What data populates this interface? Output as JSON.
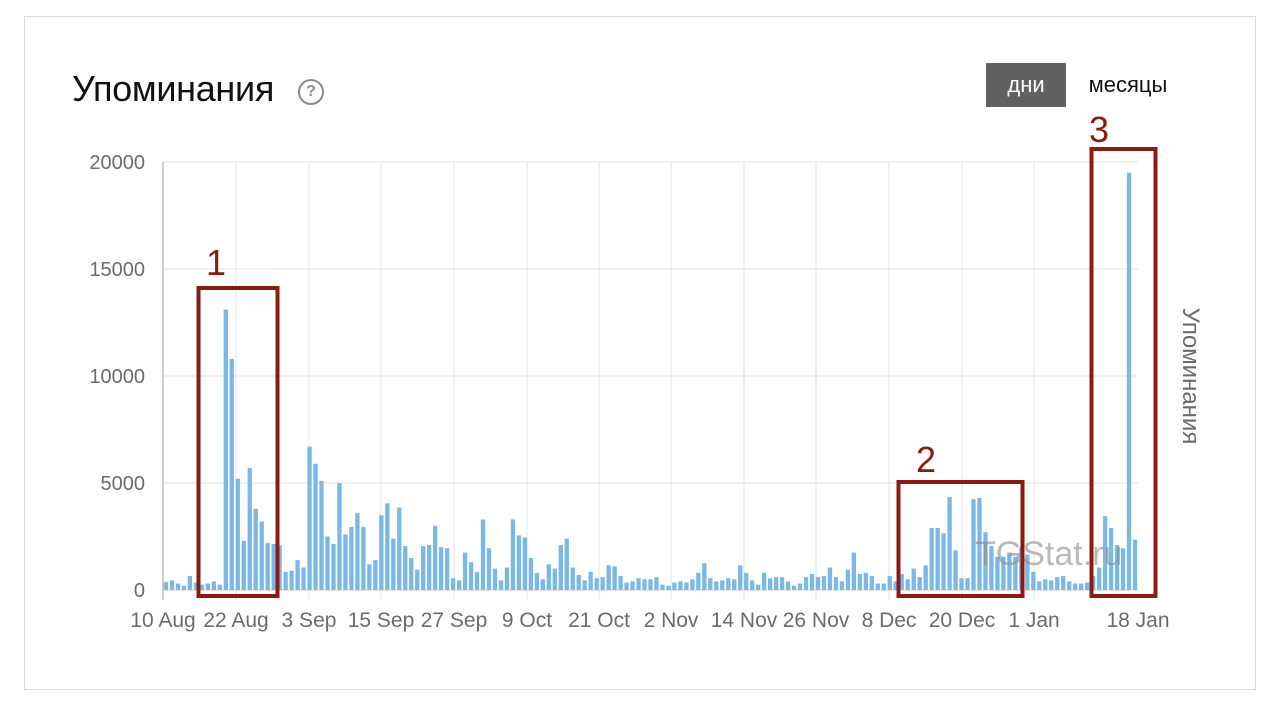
{
  "header": {
    "title": "Упоминания",
    "help_icon": "?",
    "toggle": {
      "days_label": "дни",
      "months_label": "месяцы",
      "selected": "дни"
    }
  },
  "watermark": "TGStat.ru",
  "annotations": [
    "1",
    "2",
    "3"
  ],
  "colors": {
    "bar": "#7ab8e6",
    "annotation": "#8b1a10",
    "active_toggle": "#616161"
  },
  "chart_data": {
    "type": "bar",
    "ylabel": "Упоминания",
    "ylim": [
      0,
      20000
    ],
    "yticks": [
      "0",
      "5000",
      "10000",
      "15000",
      "20000"
    ],
    "xticks": [
      "10 Aug",
      "22 Aug",
      "3 Sep",
      "15 Sep",
      "27 Sep",
      "9 Oct",
      "21 Oct",
      "2 Nov",
      "14 Nov",
      "26 Nov",
      "8 Dec",
      "20 Dec",
      "1 Jan",
      "18 Jan"
    ],
    "grid": true,
    "values": [
      380,
      450,
      300,
      200,
      650,
      350,
      250,
      300,
      400,
      250,
      13100,
      10800,
      5200,
      2300,
      5700,
      3800,
      3200,
      2200,
      2150,
      2100,
      850,
      900,
      1400,
      1050,
      6700,
      5900,
      5100,
      2500,
      2150,
      5000,
      2600,
      2950,
      3600,
      2950,
      1200,
      1400,
      3500,
      4050,
      2400,
      3850,
      2050,
      1500,
      950,
      2050,
      2100,
      3000,
      2000,
      1950,
      550,
      450,
      1750,
      1300,
      850,
      3300,
      1950,
      1000,
      450,
      1050,
      3300,
      2550,
      2450,
      1500,
      800,
      500,
      1200,
      1000,
      2100,
      2400,
      1050,
      700,
      450,
      850,
      550,
      600,
      1150,
      1100,
      650,
      350,
      400,
      550,
      500,
      500,
      600,
      250,
      200,
      350,
      400,
      350,
      500,
      800,
      1250,
      550,
      400,
      450,
      550,
      500,
      1150,
      800,
      450,
      250,
      800,
      550,
      600,
      600,
      400,
      200,
      300,
      600,
      750,
      600,
      650,
      1050,
      600,
      400,
      950,
      1750,
      750,
      800,
      650,
      300,
      300,
      650,
      400,
      750,
      500,
      1000,
      600,
      1150,
      2900,
      2900,
      2650,
      4350,
      1850,
      550,
      550,
      4250,
      4300,
      2700,
      2050,
      1550,
      1550,
      1750,
      1550,
      2000,
      1650,
      850,
      400,
      500,
      450,
      600,
      650,
      400,
      300,
      300,
      350,
      650,
      1050,
      3450,
      2900,
      2100,
      1950,
      19500,
      2350
    ]
  }
}
